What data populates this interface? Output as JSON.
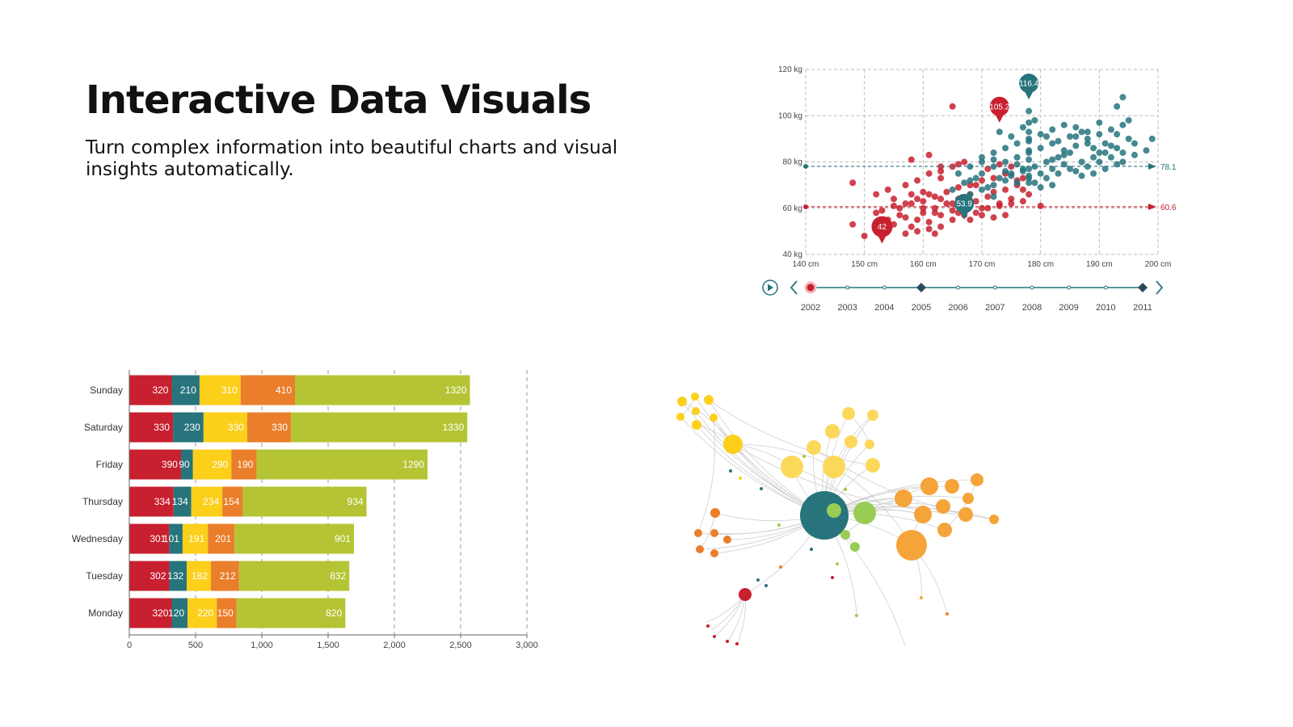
{
  "header": {
    "title": "Interactive Data Visuals",
    "subtitle": "Turn complex information into beautiful charts and visual insights automatically."
  },
  "colors": {
    "red": "#c8202f",
    "teal": "#27747c",
    "yellow": "#fccf1b",
    "orange": "#ea7e2b",
    "green": "#b5c434",
    "light_green": "#99cc55",
    "light_yellow": "#fcd85a",
    "light_orange": "#f5a43a"
  },
  "chart_data": [
    {
      "type": "scatter",
      "x_ticks": [
        "140 cm",
        "150 cm",
        "160 cm",
        "170 cm",
        "180 cm",
        "190 cm",
        "200 cm"
      ],
      "y_ticks": [
        "40 kg",
        "60 kg",
        "80 kg",
        "100 kg",
        "120 kg"
      ],
      "xlim": [
        140,
        200
      ],
      "ylim": [
        40,
        120
      ],
      "grid": true,
      "series": [
        {
          "color": "#c8202f",
          "points": [
            [
              153,
              50
            ],
            [
              150,
              48
            ],
            [
              155,
              53
            ],
            [
              157,
              56
            ],
            [
              158,
              52
            ],
            [
              159,
              55
            ],
            [
              160,
              58
            ],
            [
              161,
              54
            ],
            [
              162,
              60
            ],
            [
              163,
              57
            ],
            [
              164,
              62
            ],
            [
              165,
              59
            ],
            [
              166,
              64
            ],
            [
              167,
              61
            ],
            [
              168,
              66
            ],
            [
              169,
              63
            ],
            [
              170,
              60
            ],
            [
              171,
              65
            ],
            [
              172,
              67
            ],
            [
              173,
              62
            ],
            [
              174,
              68
            ],
            [
              175,
              64
            ],
            [
              176,
              70
            ],
            [
              178,
              66
            ],
            [
              156,
              60
            ],
            [
              158,
              62
            ],
            [
              160,
              63
            ],
            [
              162,
              65
            ],
            [
              164,
              67
            ],
            [
              166,
              69
            ],
            [
              168,
              70
            ],
            [
              170,
              72
            ],
            [
              172,
              73
            ],
            [
              174,
              75
            ],
            [
              176,
              72
            ],
            [
              177,
              68
            ],
            [
              180,
              61
            ],
            [
              148,
              53
            ],
            [
              152,
              58
            ],
            [
              155,
              64
            ],
            [
              154,
              68
            ],
            [
              157,
              70
            ],
            [
              159,
              72
            ],
            [
              161,
              75
            ],
            [
              163,
              76
            ],
            [
              165,
              78
            ],
            [
              167,
              80
            ],
            [
              163,
              73
            ],
            [
              160,
              67
            ],
            [
              158,
              66
            ],
            [
              156,
              57
            ],
            [
              154,
              55
            ],
            [
              152,
              54
            ],
            [
              161,
              51
            ],
            [
              163,
              52
            ],
            [
              165,
              55
            ],
            [
              167,
              57
            ],
            [
              169,
              58
            ],
            [
              171,
              60
            ],
            [
              173,
              61
            ],
            [
              175,
              62
            ],
            [
              177,
              63
            ],
            [
              157,
              49
            ],
            [
              159,
              50
            ],
            [
              162,
              49
            ],
            [
              165,
              104
            ],
            [
              158,
              81
            ],
            [
              161,
              83
            ],
            [
              163,
              78
            ],
            [
              166,
              79
            ],
            [
              169,
              70
            ],
            [
              171,
              77
            ],
            [
              173,
              79
            ],
            [
              175,
              78
            ],
            [
              177,
              73
            ],
            [
              148,
              71
            ],
            [
              152,
              66
            ],
            [
              160,
              60
            ],
            [
              162,
              58
            ],
            [
              166,
              58
            ],
            [
              168,
              55
            ],
            [
              170,
              57
            ],
            [
              172,
              56
            ],
            [
              174,
              57
            ],
            [
              167,
              60
            ],
            [
              165,
              62
            ],
            [
              163,
              64
            ],
            [
              161,
              66
            ],
            [
              159,
              64
            ],
            [
              157,
              62
            ],
            [
              155,
              61
            ],
            [
              153,
              59
            ]
          ],
          "labels": [
            {
              "x": 153,
              "y": 52,
              "text": "42"
            },
            {
              "x": 173,
              "y": 104,
              "text": "105.2"
            }
          ],
          "guide_value": "60.6",
          "guide_y": 60.6
        },
        {
          "color": "#27747c",
          "points": [
            [
              168,
              72
            ],
            [
              170,
              75
            ],
            [
              172,
              78
            ],
            [
              174,
              80
            ],
            [
              176,
              82
            ],
            [
              178,
              84
            ],
            [
              180,
              86
            ],
            [
              182,
              88
            ],
            [
              184,
              85
            ],
            [
              186,
              87
            ],
            [
              188,
              90
            ],
            [
              190,
              92
            ],
            [
              192,
              94
            ],
            [
              194,
              96
            ],
            [
              196,
              88
            ],
            [
              198,
              85
            ],
            [
              175,
              74
            ],
            [
              177,
              76
            ],
            [
              179,
              78
            ],
            [
              181,
              80
            ],
            [
              183,
              82
            ],
            [
              185,
              84
            ],
            [
              187,
              80
            ],
            [
              189,
              82
            ],
            [
              191,
              84
            ],
            [
              193,
              86
            ],
            [
              195,
              90
            ],
            [
              172,
              70
            ],
            [
              174,
              72
            ],
            [
              176,
              71
            ],
            [
              178,
              73
            ],
            [
              180,
              75
            ],
            [
              182,
              77
            ],
            [
              184,
              79
            ],
            [
              186,
              76
            ],
            [
              188,
              78
            ],
            [
              190,
              80
            ],
            [
              192,
              82
            ],
            [
              194,
              84
            ],
            [
              170,
              80
            ],
            [
              172,
              84
            ],
            [
              174,
              86
            ],
            [
              176,
              88
            ],
            [
              178,
              90
            ],
            [
              180,
              92
            ],
            [
              182,
              94
            ],
            [
              184,
              96
            ],
            [
              186,
              95
            ],
            [
              188,
              93
            ],
            [
              190,
              97
            ],
            [
              173,
              93
            ],
            [
              175,
              91
            ],
            [
              177,
              95
            ],
            [
              179,
              98
            ],
            [
              181,
              91
            ],
            [
              183,
              89
            ],
            [
              185,
              91
            ],
            [
              187,
              93
            ],
            [
              189,
              86
            ],
            [
              191,
              88
            ],
            [
              193,
              92
            ],
            [
              195,
              98
            ],
            [
              193,
              104
            ],
            [
              194,
              108
            ],
            [
              199,
              90
            ],
            [
              165,
              68
            ],
            [
              167,
              71
            ],
            [
              169,
              73
            ],
            [
              171,
              69
            ],
            [
              173,
              73
            ],
            [
              175,
              75
            ],
            [
              177,
              77
            ],
            [
              179,
              71
            ],
            [
              181,
              73
            ],
            [
              183,
              75
            ],
            [
              185,
              77
            ],
            [
              187,
              74
            ],
            [
              189,
              75
            ],
            [
              191,
              77
            ],
            [
              193,
              79
            ],
            [
              178,
              102
            ],
            [
              178,
              97
            ],
            [
              178,
              93
            ],
            [
              178,
              89
            ],
            [
              178,
              85
            ],
            [
              178,
              81
            ],
            [
              178,
              77
            ],
            [
              178,
              74
            ],
            [
              178,
              71
            ],
            [
              168,
              66
            ],
            [
              170,
              68
            ],
            [
              172,
              65
            ],
            [
              182,
              81
            ],
            [
              184,
              83
            ],
            [
              186,
              91
            ],
            [
              188,
              88
            ],
            [
              190,
              84
            ],
            [
              192,
              87
            ],
            [
              194,
              80
            ],
            [
              196,
              83
            ],
            [
              180,
              69
            ],
            [
              182,
              70
            ],
            [
              176,
              79
            ],
            [
              174,
              76
            ],
            [
              172,
              81
            ],
            [
              170,
              82
            ],
            [
              168,
              78
            ],
            [
              166,
              75
            ]
          ],
          "labels": [
            {
              "x": 167,
              "y": 62,
              "text": "53.9"
            },
            {
              "x": 178,
              "y": 114,
              "text": "116.4"
            }
          ],
          "guide_value": "78.1",
          "guide_y": 78.1
        }
      ],
      "timeline": {
        "years": [
          "2002",
          "2003",
          "2004",
          "2005",
          "2006",
          "2007",
          "2008",
          "2009",
          "2010",
          "2011"
        ],
        "current": "2002",
        "markers": [
          "2005",
          "2011"
        ]
      }
    },
    {
      "type": "bar",
      "orientation": "horizontal",
      "stacked": true,
      "categories": [
        "Sunday",
        "Saturday",
        "Friday",
        "Thursday",
        "Wednesday",
        "Tuesday",
        "Monday"
      ],
      "series": [
        {
          "color": "#c8202f",
          "values": [
            320,
            330,
            390,
            334,
            301,
            302,
            320
          ]
        },
        {
          "color": "#27747c",
          "values": [
            210,
            230,
            90,
            134,
            101,
            132,
            120
          ]
        },
        {
          "color": "#fccf1b",
          "values": [
            310,
            330,
            290,
            234,
            191,
            182,
            220
          ]
        },
        {
          "color": "#ea7e2b",
          "values": [
            410,
            330,
            190,
            154,
            201,
            212,
            150
          ]
        },
        {
          "color": "#b5c434",
          "values": [
            1320,
            1330,
            1290,
            934,
            901,
            832,
            820
          ]
        }
      ],
      "value_labels": [
        [
          "320",
          "210",
          "310",
          "410",
          "1320"
        ],
        [
          "330",
          "230",
          "330",
          "330",
          "1330"
        ],
        [
          "390",
          "90",
          "290",
          "190",
          "1290"
        ],
        [
          "334",
          "134",
          "234",
          "154",
          "934"
        ],
        [
          "301",
          "101",
          "191",
          "201",
          "901"
        ],
        [
          "302",
          "132",
          "182",
          "212",
          "832"
        ],
        [
          "320",
          "120",
          "220",
          "150",
          "820"
        ]
      ],
      "x_ticks": [
        "0",
        "500",
        "1,000",
        "1,500",
        "2,000",
        "2,500",
        "3,000"
      ],
      "xlim": [
        0,
        3000
      ]
    }
  ]
}
